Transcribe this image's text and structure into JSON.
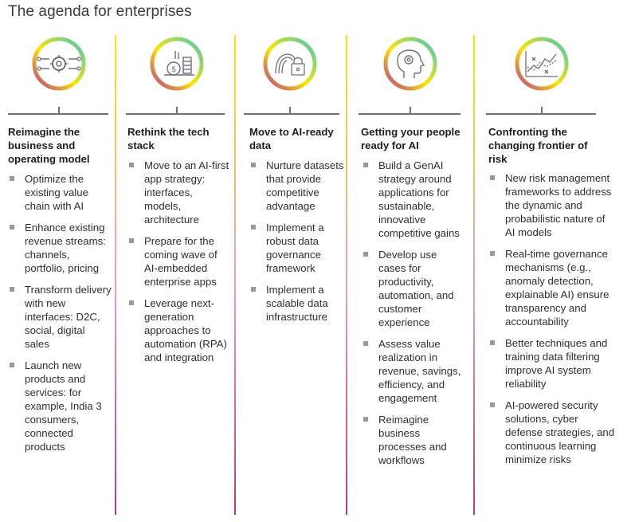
{
  "title": "The agenda for enterprises",
  "colors": {
    "line_yellow": "#ffe600",
    "line_purple": "#b7378f",
    "ring_yellow": "#ffe600",
    "ring_teal": "#3fc7c0",
    "ring_purple": "#b7378f",
    "connector": "#6f6f78"
  },
  "columns": [
    {
      "icon": "gear-circuit-icon",
      "title": "Reimagine the business and operating model",
      "items": [
        "Optimize the existing value chain with AI",
        "Enhance existing revenue streams: channels, portfolio, pricing",
        "Transform delivery with new interfaces: D2C, social, digital sales",
        "Launch new products and services: for example, India 3 consumers, connected products"
      ]
    },
    {
      "icon": "coins-dollar-icon",
      "title": "Rethink the tech stack",
      "items": [
        "Move to an AI-first app strategy: interfaces, models, architecture",
        "Prepare for the coming wave of AI-embedded enterprise apps",
        "Leverage next-generation approaches to automation (RPA) and integration"
      ]
    },
    {
      "icon": "fingerprint-lock-icon",
      "title": "Move to AI-ready data",
      "items": [
        "Nurture datasets that provide competitive advantage",
        "Implement a robust data governance framework",
        "Implement a scalable data infrastructure"
      ]
    },
    {
      "icon": "head-gear-icon",
      "title": "Getting your people ready for AI",
      "items": [
        "Build a GenAI strategy around applications for sustainable, innovative competitive gains",
        "Develop use cases for productivity, automation, and customer experience",
        "Assess value realization in revenue, savings, efficiency, and engagement",
        "Reimagine business processes and workflows"
      ]
    },
    {
      "icon": "trend-chart-icon",
      "title": "Confronting the changing frontier of risk",
      "items": [
        "New risk management frameworks to address the dynamic and probabilistic nature of AI models",
        "Real-time governance mechanisms (e.g., anomaly detection, explainable AI) ensure transparency and accountability",
        "Better techniques and training data filtering improve AI system reliability",
        "AI-powered security solutions, cyber defense strategies, and continuous learning minimize risks"
      ]
    }
  ]
}
